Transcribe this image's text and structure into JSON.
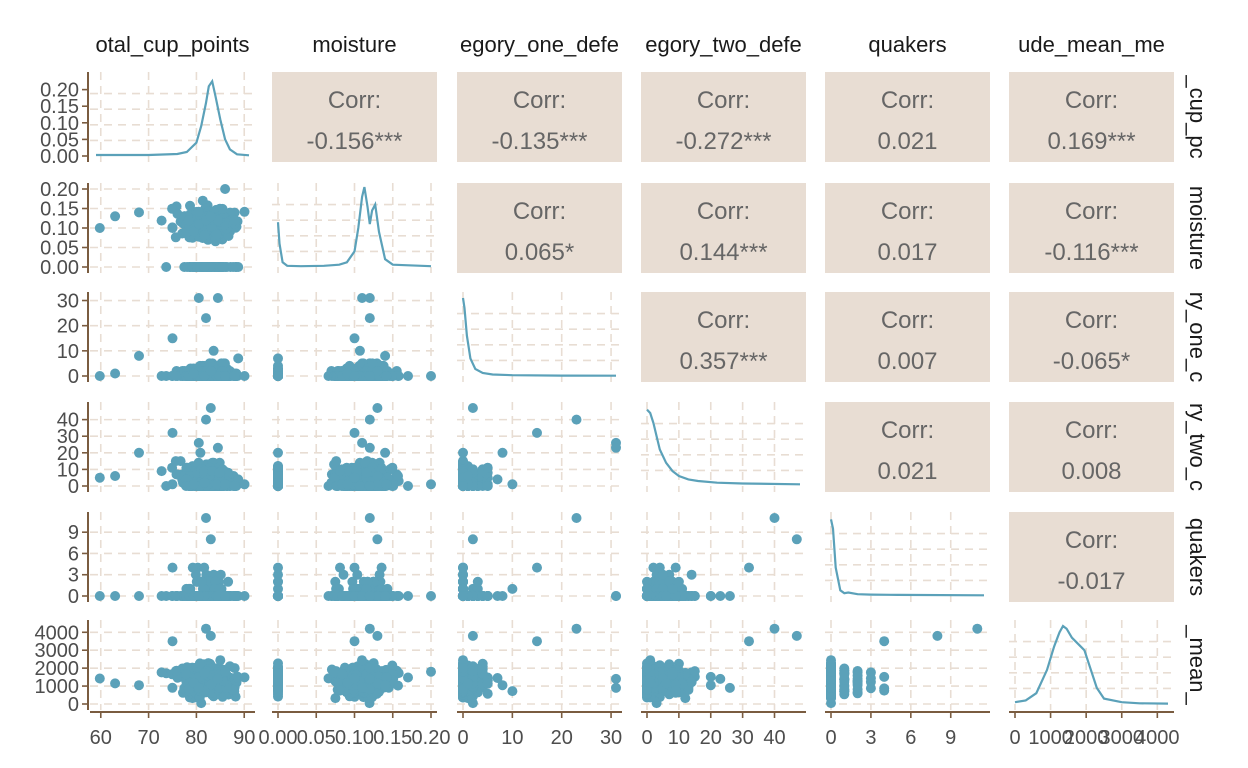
{
  "chart_data": {
    "type": "scatter-matrix",
    "variables": [
      "total_cup_points",
      "moisture",
      "category_one_defects",
      "category_two_defects",
      "quakers",
      "altitude_mean_meters"
    ],
    "column_strip_labels": [
      "otal_cup_points",
      "moisture",
      "egory_one_defe",
      "egory_two_defe",
      "quakers",
      "ude_mean_me"
    ],
    "row_strip_labels": [
      "_cup_pc",
      "moisture",
      "ry_one_c",
      "ry_two_c",
      "quakers",
      "_mean_"
    ],
    "colors": {
      "points": "#5ba1b9",
      "corr_panel": "#e8ddd3",
      "grid": "#e8ddd3",
      "axis": "#7a5c40"
    },
    "corr_label": "Corr:",
    "correlations": [
      {
        "row": 0,
        "col": 1,
        "value": "-0.156***"
      },
      {
        "row": 0,
        "col": 2,
        "value": "-0.135***"
      },
      {
        "row": 0,
        "col": 3,
        "value": "-0.272***"
      },
      {
        "row": 0,
        "col": 4,
        "value": "0.021"
      },
      {
        "row": 0,
        "col": 5,
        "value": "0.169***"
      },
      {
        "row": 1,
        "col": 2,
        "value": "0.065*"
      },
      {
        "row": 1,
        "col": 3,
        "value": "0.144***"
      },
      {
        "row": 1,
        "col": 4,
        "value": "0.017"
      },
      {
        "row": 1,
        "col": 5,
        "value": "-0.116***"
      },
      {
        "row": 2,
        "col": 3,
        "value": "0.357***"
      },
      {
        "row": 2,
        "col": 4,
        "value": "0.007"
      },
      {
        "row": 2,
        "col": 5,
        "value": "-0.065*"
      },
      {
        "row": 3,
        "col": 4,
        "value": "0.021"
      },
      {
        "row": 3,
        "col": 5,
        "value": "0.008"
      },
      {
        "row": 4,
        "col": 5,
        "value": "-0.017"
      }
    ],
    "x_ranges": [
      [
        59,
        91
      ],
      [
        0,
        0.2
      ],
      [
        0,
        31
      ],
      [
        0,
        48
      ],
      [
        0,
        11.5
      ],
      [
        0,
        4300
      ]
    ],
    "x_ticks": [
      {
        "values": [
          60,
          70,
          80,
          90
        ],
        "labels": [
          "60",
          "70",
          "80",
          "90"
        ]
      },
      {
        "values": [
          0,
          0.05,
          0.1,
          0.15,
          0.2
        ],
        "labels": [
          "0.00",
          "0.05",
          "0.10",
          "0.15",
          "0.20"
        ]
      },
      {
        "values": [
          0,
          10,
          20,
          30
        ],
        "labels": [
          "0",
          "10",
          "20",
          "30"
        ]
      },
      {
        "values": [
          0,
          10,
          20,
          30,
          40
        ],
        "labels": [
          "0",
          "10",
          "20",
          "30",
          "40"
        ]
      },
      {
        "values": [
          0,
          3,
          6,
          9
        ],
        "labels": [
          "0",
          "3",
          "6",
          "9"
        ]
      },
      {
        "values": [
          0,
          1000,
          2000,
          3000,
          4000
        ],
        "labels": [
          "0",
          "1000",
          "2000",
          "3000",
          "4000"
        ]
      }
    ],
    "y_ranges": [
      [
        0,
        0.235
      ],
      [
        0,
        0.2
      ],
      [
        0,
        31
      ],
      [
        0,
        47
      ],
      [
        0,
        11
      ],
      [
        0,
        4350
      ]
    ],
    "y_ticks": [
      {
        "values": [
          0,
          0.05,
          0.1,
          0.15,
          0.2
        ],
        "labels": [
          "0.00",
          "0.05",
          "0.10",
          "0.15",
          "0.20"
        ]
      },
      {
        "values": [
          0,
          0.05,
          0.1,
          0.15,
          0.2
        ],
        "labels": [
          "0.00",
          "0.05",
          "0.10",
          "0.15",
          "0.20"
        ]
      },
      {
        "values": [
          0,
          10,
          20,
          30
        ],
        "labels": [
          "0",
          "10",
          "20",
          "30"
        ]
      },
      {
        "values": [
          0,
          10,
          20,
          30,
          40
        ],
        "labels": [
          "0",
          "10",
          "20",
          "30",
          "40"
        ]
      },
      {
        "values": [
          0,
          3,
          6,
          9
        ],
        "labels": [
          "0",
          "3",
          "6",
          "9"
        ]
      },
      {
        "values": [
          0,
          1000,
          2000,
          3000,
          4000
        ],
        "labels": [
          "0",
          "1000",
          "2000",
          "3000",
          "4000"
        ]
      }
    ],
    "densities": [
      {
        "var": 0,
        "x": [
          59,
          70,
          76,
          78,
          80,
          81,
          82,
          82.6,
          83.3,
          84,
          85,
          86,
          87,
          88.5,
          91
        ],
        "y": [
          0.003,
          0.003,
          0.006,
          0.012,
          0.04,
          0.09,
          0.16,
          0.21,
          0.225,
          0.18,
          0.11,
          0.05,
          0.02,
          0.005,
          0.002
        ]
      },
      {
        "var": 1,
        "x": [
          0,
          0.002,
          0.006,
          0.012,
          0.03,
          0.06,
          0.08,
          0.09,
          0.1,
          0.105,
          0.11,
          0.113,
          0.117,
          0.12,
          0.123,
          0.127,
          0.132,
          0.14,
          0.15,
          0.2
        ],
        "y": [
          0.115,
          0.06,
          0.012,
          0.003,
          0.002,
          0.003,
          0.006,
          0.012,
          0.04,
          0.1,
          0.18,
          0.205,
          0.155,
          0.11,
          0.145,
          0.16,
          0.09,
          0.02,
          0.006,
          0.002
        ]
      },
      {
        "var": 2,
        "x": [
          0,
          0.3,
          0.8,
          1.5,
          2.5,
          4,
          6,
          10,
          20,
          31
        ],
        "y": [
          31,
          27,
          16,
          7,
          2.8,
          1.2,
          0.6,
          0.3,
          0.15,
          0.1
        ]
      },
      {
        "var": 3,
        "x": [
          0,
          1,
          2,
          3,
          4,
          6,
          8,
          10,
          13,
          16,
          22,
          30,
          48
        ],
        "y": [
          46,
          44,
          38,
          30,
          22,
          14,
          9,
          6,
          4,
          3,
          2,
          1.5,
          1
        ]
      },
      {
        "var": 4,
        "x": [
          0,
          0.15,
          0.35,
          0.7,
          1,
          1.3,
          2,
          3,
          5,
          11.5
        ],
        "y": [
          10.8,
          9.5,
          4,
          0.8,
          0.4,
          0.5,
          0.25,
          0.2,
          0.15,
          0.1
        ]
      },
      {
        "var": 5,
        "x": [
          0,
          300,
          600,
          900,
          1100,
          1250,
          1350,
          1450,
          1600,
          1800,
          1950,
          2100,
          2300,
          2500,
          3000,
          3500,
          4300
        ],
        "y": [
          100,
          200,
          600,
          1900,
          3200,
          4000,
          4350,
          4200,
          3700,
          3300,
          3000,
          2100,
          900,
          300,
          100,
          40,
          20
        ]
      }
    ],
    "title": "",
    "xlabel": "",
    "ylabel": "",
    "grid": true,
    "legend": "none"
  }
}
